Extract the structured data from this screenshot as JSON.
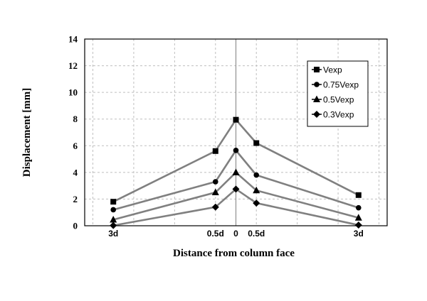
{
  "chart_data": {
    "type": "line",
    "title": "",
    "xlabel": "Distance from column face",
    "ylabel": "Displacement [mm]",
    "ylim": [
      0,
      14
    ],
    "yticks": [
      0,
      2,
      4,
      6,
      8,
      10,
      12,
      14
    ],
    "xlim": [
      -3.7,
      3.7
    ],
    "x_gridlines": [
      -3.5,
      -2.5,
      -1.5,
      -0.5,
      0.5,
      1.5,
      2.5,
      3.5
    ],
    "x": [
      -3,
      -0.5,
      0,
      0.5,
      3
    ],
    "x_tick_labels": [
      "3d",
      "0.5d",
      "0",
      "0.5d",
      "3d"
    ],
    "grid": true,
    "legend_position": "top-right",
    "series": [
      {
        "name": "Vexp",
        "marker": "square",
        "values": [
          1.8,
          5.6,
          7.95,
          6.2,
          2.3
        ]
      },
      {
        "name": "0.75Vexp",
        "marker": "circle",
        "values": [
          1.2,
          3.3,
          5.65,
          3.8,
          1.35
        ]
      },
      {
        "name": "0.5Vexp",
        "marker": "triangle",
        "values": [
          0.45,
          2.5,
          4.0,
          2.65,
          0.6
        ]
      },
      {
        "name": "0.3Vexp",
        "marker": "diamond",
        "values": [
          0.02,
          1.4,
          2.75,
          1.7,
          0.05
        ]
      }
    ],
    "colors": {
      "line": "#808080",
      "marker": "#000000",
      "grid": "#bfbfbf",
      "frame": "#000000"
    }
  }
}
